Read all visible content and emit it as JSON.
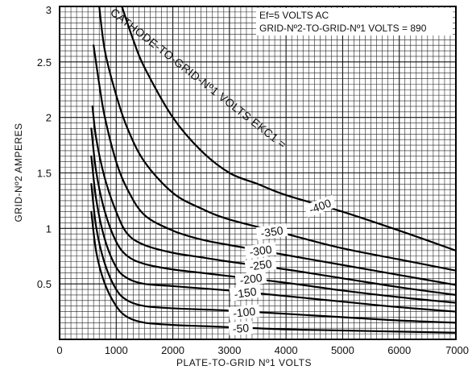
{
  "chart_data": {
    "type": "line",
    "xlabel": "PLATE-TO-GRID Nº1 VOLTS",
    "ylabel": "GRID-Nº2 AMPERES",
    "xlim": [
      0,
      7000
    ],
    "ylim": [
      0,
      3
    ],
    "x_ticks": [
      "0",
      "1000",
      "2000",
      "3000",
      "4000",
      "5000",
      "6000",
      "7000"
    ],
    "y_ticks": [
      "0.5",
      "1",
      "1.5",
      "2",
      "2.5",
      "3"
    ],
    "grid": true,
    "annotations": [
      "Ef=5 VOLTS AC",
      "GRID-Nº2-TO-GRID-Nº1 VOLTS = 890"
    ],
    "family_label": "CATHODE-TO-GRID-Nº1 VOLTS EKC1 =",
    "series": [
      {
        "name": "-400",
        "x": [
          1100,
          1300,
          1500,
          2000,
          2500,
          3000,
          3500,
          4000,
          5000,
          6000,
          7000
        ],
        "y": [
          3.0,
          2.7,
          2.45,
          2.0,
          1.7,
          1.5,
          1.4,
          1.3,
          1.15,
          0.98,
          0.8
        ]
      },
      {
        "name": "-350",
        "x": [
          700,
          800,
          1000,
          1200,
          1500,
          2000,
          2500,
          3000,
          4000,
          5000,
          6000,
          7000
        ],
        "y": [
          3.0,
          2.6,
          2.2,
          1.9,
          1.6,
          1.32,
          1.18,
          1.08,
          0.95,
          0.82,
          0.72,
          0.62
        ]
      },
      {
        "name": "-300",
        "x": [
          600,
          700,
          800,
          1000,
          1200,
          1500,
          2000,
          2500,
          3000,
          4000,
          5000,
          6000,
          7000
        ],
        "y": [
          2.65,
          2.3,
          2.0,
          1.6,
          1.35,
          1.12,
          0.98,
          0.9,
          0.85,
          0.76,
          0.67,
          0.58,
          0.49
        ]
      },
      {
        "name": "-250",
        "x": [
          580,
          650,
          800,
          1000,
          1200,
          1500,
          2000,
          2500,
          3000,
          4000,
          5000,
          6000,
          7000
        ],
        "y": [
          2.1,
          1.8,
          1.45,
          1.15,
          0.95,
          0.85,
          0.78,
          0.74,
          0.7,
          0.63,
          0.55,
          0.47,
          0.4
        ]
      },
      {
        "name": "-200",
        "x": [
          560,
          650,
          800,
          1000,
          1200,
          1500,
          2000,
          2500,
          3000,
          4000,
          5000,
          6000,
          7000
        ],
        "y": [
          1.9,
          1.5,
          1.15,
          0.88,
          0.75,
          0.68,
          0.63,
          0.6,
          0.57,
          0.51,
          0.44,
          0.38,
          0.33
        ]
      },
      {
        "name": "-150",
        "x": [
          560,
          650,
          800,
          1000,
          1200,
          1500,
          2000,
          2500,
          3000,
          4000,
          5000,
          6000,
          7000
        ],
        "y": [
          1.65,
          1.25,
          0.9,
          0.65,
          0.55,
          0.5,
          0.48,
          0.46,
          0.44,
          0.39,
          0.34,
          0.29,
          0.25
        ]
      },
      {
        "name": "-100",
        "x": [
          560,
          650,
          800,
          1000,
          1200,
          1500,
          2000,
          2500,
          3000,
          4000,
          5000,
          6000,
          7000
        ],
        "y": [
          1.4,
          1.0,
          0.68,
          0.45,
          0.35,
          0.3,
          0.28,
          0.27,
          0.26,
          0.23,
          0.2,
          0.17,
          0.15
        ]
      },
      {
        "name": "-50",
        "x": [
          560,
          650,
          800,
          1000,
          1200,
          1500,
          2000,
          2500,
          3000,
          4000,
          5000,
          6000,
          7000
        ],
        "y": [
          1.15,
          0.78,
          0.5,
          0.3,
          0.2,
          0.15,
          0.13,
          0.12,
          0.11,
          0.09,
          0.08,
          0.07,
          0.06
        ]
      }
    ]
  }
}
